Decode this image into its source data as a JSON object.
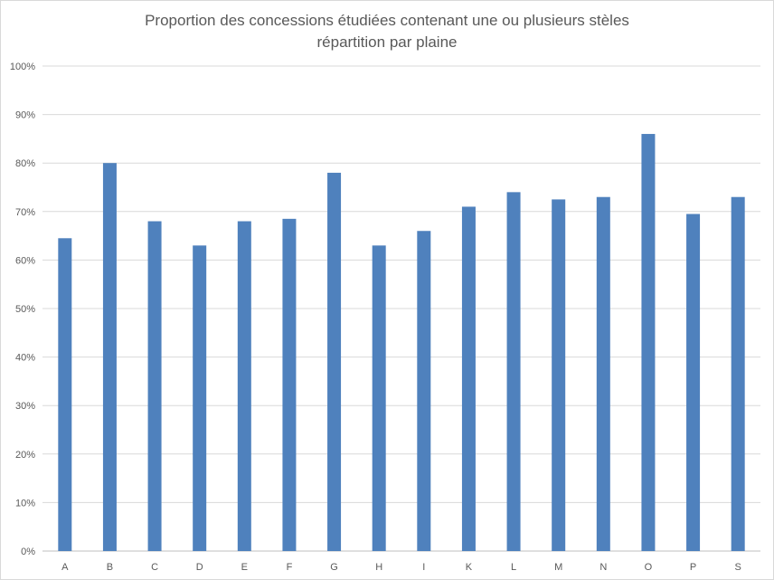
{
  "chart_data": {
    "type": "bar",
    "title": "Proportion des concessions étudiées contenant une ou plusieurs stèles",
    "subtitle": "répartition par plaine",
    "xlabel": "",
    "ylabel": "",
    "categories": [
      "A",
      "B",
      "C",
      "D",
      "E",
      "F",
      "G",
      "H",
      "I",
      "K",
      "L",
      "M",
      "N",
      "O",
      "P",
      "S"
    ],
    "values": [
      0.645,
      0.8,
      0.68,
      0.63,
      0.68,
      0.685,
      0.78,
      0.63,
      0.66,
      0.71,
      0.74,
      0.725,
      0.73,
      0.86,
      0.695,
      0.73
    ],
    "ylim": [
      0,
      1
    ],
    "yticks": [
      "0%",
      "10%",
      "20%",
      "30%",
      "40%",
      "50%",
      "60%",
      "70%",
      "80%",
      "90%",
      "100%"
    ],
    "grid": true,
    "legend": "none",
    "colors": {
      "bar": "#4f81bd",
      "grid": "#d9d9d9",
      "text": "#595959"
    }
  }
}
